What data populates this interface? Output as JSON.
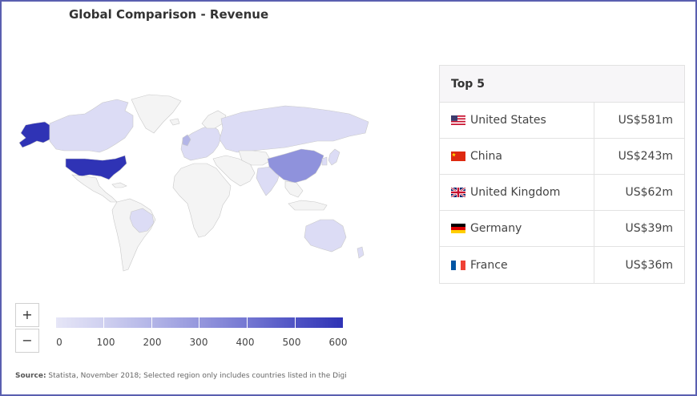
{
  "title": "Global Comparison - Revenue",
  "top5": {
    "heading": "Top 5",
    "rows": [
      {
        "country": "United States",
        "value": "US$581m",
        "flag": "us-flag-icon"
      },
      {
        "country": "China",
        "value": "US$243m",
        "flag": "cn-flag-icon"
      },
      {
        "country": "United Kingdom",
        "value": "US$62m",
        "flag": "uk-flag-icon"
      },
      {
        "country": "Germany",
        "value": "US$39m",
        "flag": "de-flag-icon"
      },
      {
        "country": "France",
        "value": "US$36m",
        "flag": "fr-flag-icon"
      }
    ]
  },
  "zoom": {
    "in_label": "+",
    "out_label": "−"
  },
  "legend": {
    "ticks": [
      "0",
      "100",
      "200",
      "300",
      "400",
      "500",
      "600"
    ],
    "colors": [
      "#e6e6f7",
      "#cfd0f0",
      "#b3b5e7",
      "#9597dd",
      "#7477d2",
      "#4f53c4",
      "#2f33b5"
    ]
  },
  "colors": {
    "us": "#2f33b5",
    "china": "#8f92dc",
    "light": "#dcdcf5",
    "none": "#f4f4f4",
    "border": "#5a5fb0"
  },
  "source": {
    "label": "Source:",
    "text": " Statista, November 2018; Selected region only includes countries listed in the Digi"
  }
}
